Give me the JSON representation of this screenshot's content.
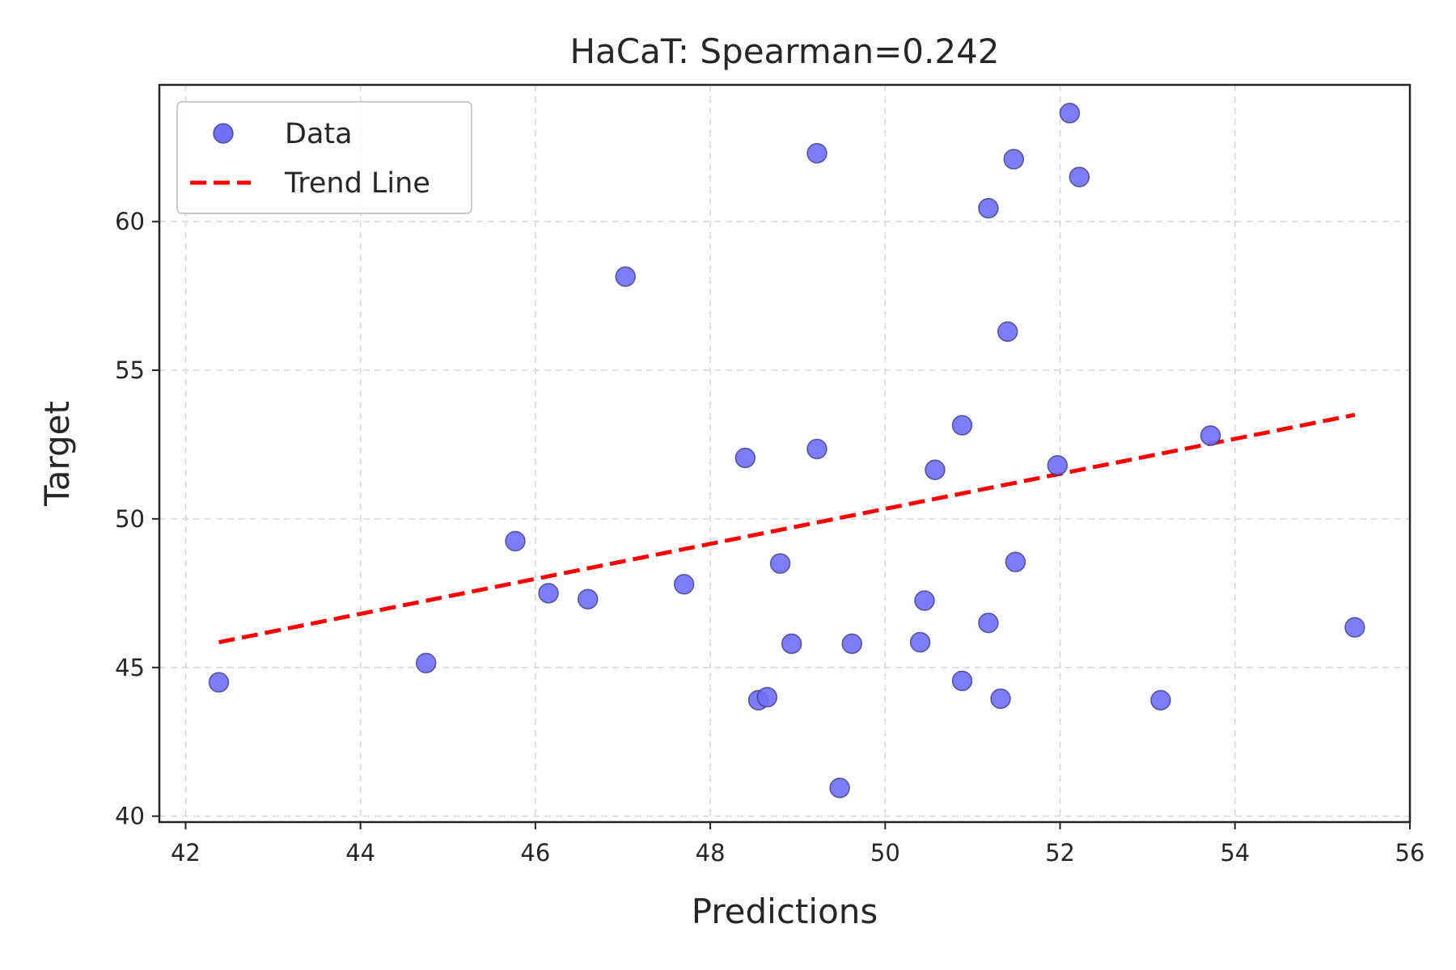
{
  "chart_data": {
    "type": "scatter",
    "title": "HaCaT: Spearman=0.242",
    "xlabel": "Predictions",
    "ylabel": "Target",
    "xlim": [
      41.7,
      56.0
    ],
    "ylim": [
      39.8,
      64.6
    ],
    "xticks": [
      42,
      44,
      46,
      48,
      50,
      52,
      54,
      56
    ],
    "yticks": [
      40,
      45,
      50,
      55,
      60
    ],
    "grid": true,
    "legend_position": "top-left",
    "series": [
      {
        "name": "Data",
        "kind": "scatter",
        "color": "#6f6ff7",
        "points": [
          {
            "x": 42.38,
            "y": 44.5
          },
          {
            "x": 44.75,
            "y": 45.15
          },
          {
            "x": 45.77,
            "y": 49.25
          },
          {
            "x": 46.15,
            "y": 47.5
          },
          {
            "x": 46.6,
            "y": 47.3
          },
          {
            "x": 47.03,
            "y": 58.15
          },
          {
            "x": 47.7,
            "y": 47.8
          },
          {
            "x": 48.4,
            "y": 52.05
          },
          {
            "x": 48.55,
            "y": 43.9
          },
          {
            "x": 48.65,
            "y": 44.0
          },
          {
            "x": 48.8,
            "y": 48.5
          },
          {
            "x": 48.93,
            "y": 45.8
          },
          {
            "x": 49.22,
            "y": 62.3
          },
          {
            "x": 49.22,
            "y": 52.35
          },
          {
            "x": 49.48,
            "y": 40.95
          },
          {
            "x": 49.62,
            "y": 45.8
          },
          {
            "x": 50.4,
            "y": 45.85
          },
          {
            "x": 50.45,
            "y": 47.25
          },
          {
            "x": 50.57,
            "y": 51.65
          },
          {
            "x": 50.88,
            "y": 53.15
          },
          {
            "x": 50.88,
            "y": 44.55
          },
          {
            "x": 51.18,
            "y": 60.45
          },
          {
            "x": 51.18,
            "y": 46.5
          },
          {
            "x": 51.32,
            "y": 43.95
          },
          {
            "x": 51.4,
            "y": 56.3
          },
          {
            "x": 51.47,
            "y": 62.1
          },
          {
            "x": 51.49,
            "y": 48.55
          },
          {
            "x": 51.97,
            "y": 51.8
          },
          {
            "x": 52.11,
            "y": 63.65
          },
          {
            "x": 52.22,
            "y": 61.5
          },
          {
            "x": 53.15,
            "y": 43.9
          },
          {
            "x": 53.72,
            "y": 52.8
          },
          {
            "x": 55.37,
            "y": 46.35
          }
        ]
      },
      {
        "name": "Trend Line",
        "kind": "line",
        "style": "dashed",
        "color": "#ff0000",
        "x": [
          42.38,
          55.37
        ],
        "y": [
          45.85,
          53.5
        ]
      }
    ]
  }
}
